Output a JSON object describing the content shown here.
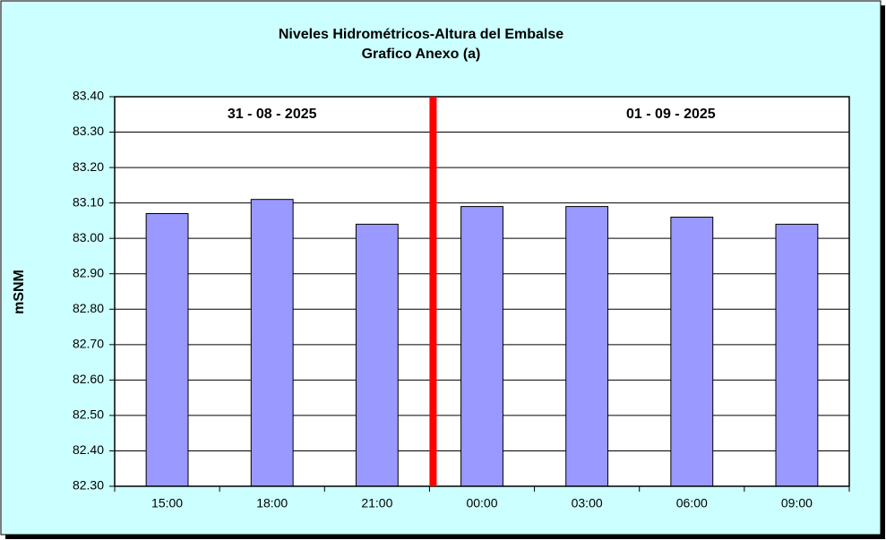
{
  "chart_data": {
    "type": "bar",
    "title": "Niveles Hidrométricos-Altura del Embalse",
    "subtitle": "Grafico Anexo (a)",
    "y_label": "mSNM",
    "annotations": [
      "31 - 08 - 2025",
      "01 - 09 - 2025"
    ],
    "categories": [
      "15:00",
      "18:00",
      "21:00",
      "00:00",
      "03:00",
      "06:00",
      "09:00"
    ],
    "values": [
      83.07,
      83.11,
      83.04,
      83.09,
      83.09,
      83.06,
      83.04
    ],
    "color": "#9999ff",
    "ylim": [
      82.3,
      83.4
    ],
    "yticks": [
      {
        "value": 82.3,
        "label": "82.30"
      },
      {
        "value": 82.4,
        "label": "82.40"
      },
      {
        "value": 82.5,
        "label": "82.50"
      },
      {
        "value": 82.6,
        "label": "82.60"
      },
      {
        "value": 82.7,
        "label": "82.70"
      },
      {
        "value": 82.8,
        "label": "82.80"
      },
      {
        "value": 82.9,
        "label": "82.90"
      },
      {
        "value": 83.0,
        "label": "83.00"
      },
      {
        "value": 83.1,
        "label": "83.10"
      },
      {
        "value": 83.2,
        "label": "83.20"
      },
      {
        "value": 83.3,
        "label": "83.30"
      },
      {
        "value": 83.4,
        "label": "83.40"
      }
    ],
    "grid": true
  }
}
